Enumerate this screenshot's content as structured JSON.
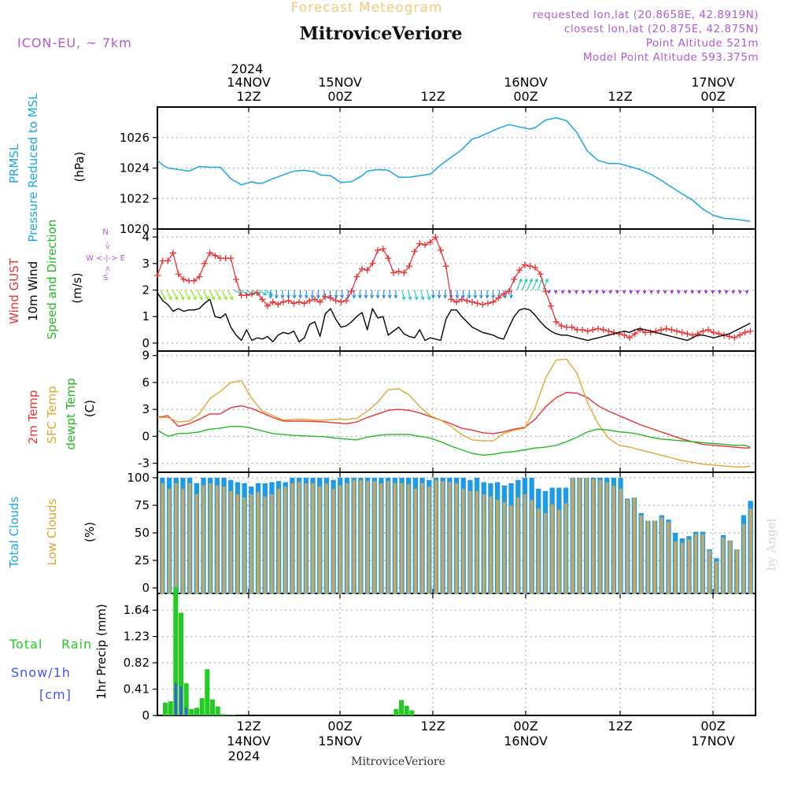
{
  "header": {
    "title": "Forecast Meteogram",
    "location": "MitroviceVeriore",
    "model": "ICON-EU, ~ 7km",
    "requested": "requested lon,lat (20.8658E, 42.8919N)",
    "closest": "closest lon,lat (20.875E, 42.875N)",
    "point_alt": "Point Altitude 521m",
    "model_alt": "Model Point Altitude 593.375m",
    "watermark": "by Angel",
    "footer_location": "MitroviceVeriore"
  },
  "time_axis": {
    "top_year": "2024",
    "top_dates": [
      "14NOV",
      "15NOV",
      "",
      "16NOV",
      "",
      "17NOV"
    ],
    "top_hours": [
      "12Z",
      "00Z",
      "12Z",
      "00Z",
      "12Z",
      "00Z"
    ],
    "bottom_hours": [
      "12Z",
      "00Z",
      "12Z",
      "00Z",
      "12Z",
      "00Z"
    ],
    "bottom_dates": [
      "14NOV",
      "15NOV",
      "",
      "16NOV",
      "",
      "17NOV"
    ],
    "bottom_year": "2024"
  },
  "panel_labels": {
    "p1": [
      "PRMSL",
      "Pressure Reduced to MSL",
      "(hPa)"
    ],
    "p2": [
      "Wind GUST",
      "10m Wind",
      "Speed and Direction",
      "(m/s)"
    ],
    "p2_compass": [
      "N",
      "W <-|-> E",
      "S"
    ],
    "p3": [
      "2m Temp",
      "SFC Temp",
      "dewpt Temp",
      "(C)"
    ],
    "p4": [
      "Total Clouds",
      "Low Clouds",
      "(%)"
    ],
    "p5": [
      "Total",
      "Rain",
      "Snow/1h",
      "[cm]",
      "1hr Precip (mm)"
    ]
  },
  "colors": {
    "pressure": "#1ba6e6",
    "gust": "#ee3333",
    "wind": "#000000",
    "t2m": "#ee3333",
    "tsfc": "#e0a830",
    "dewpt": "#22bb22",
    "total_clouds": "#1e9be8",
    "low_clouds": "#c8a860",
    "rain": "#22cc22",
    "snow": "#4455ee",
    "title": "#f5c97a",
    "info": "#b05ad8"
  },
  "chart_data": [
    {
      "type": "line",
      "title": "PRMSL Pressure Reduced to MSL",
      "ylabel": "(hPa)",
      "ylim": [
        1020,
        1028
      ],
      "yticks": [
        1020,
        1022,
        1024,
        1026
      ],
      "x_hours": [
        0,
        1,
        2,
        4,
        6,
        8,
        10,
        12,
        14,
        16,
        18,
        19,
        20,
        22,
        24,
        26,
        28,
        30,
        31,
        33,
        35,
        37,
        39,
        40,
        42,
        44,
        46,
        48,
        50,
        52,
        54,
        56,
        58,
        60,
        61,
        63,
        65,
        67,
        69,
        71,
        72,
        74,
        76,
        78,
        80,
        82,
        84,
        86,
        88,
        90,
        92,
        94,
        96,
        98,
        100,
        102,
        104,
        106,
        108,
        110,
        111,
        112,
        113
      ],
      "series": [
        {
          "name": "PRMSL",
          "values": [
            1024.5,
            1024.2,
            1024.0,
            1023.9,
            1023.8,
            1024.1,
            1024.05,
            1024.05,
            1023.3,
            1022.9,
            1023.1,
            1023.0,
            1023.0,
            1023.3,
            1023.55,
            1023.8,
            1023.85,
            1023.75,
            1023.55,
            1023.5,
            1023.05,
            1023.1,
            1023.5,
            1023.8,
            1023.9,
            1023.85,
            1023.4,
            1023.4,
            1023.5,
            1023.6,
            1024.2,
            1024.7,
            1025.2,
            1025.9,
            1026.0,
            1026.3,
            1026.6,
            1026.85,
            1026.7,
            1026.55,
            1026.65,
            1027.15,
            1027.3,
            1027.1,
            1026.3,
            1025.1,
            1024.5,
            1024.3,
            1024.3,
            1024.1,
            1023.9,
            1023.6,
            1023.2,
            1022.75,
            1022.3,
            1021.9,
            1021.3,
            1020.9,
            1020.7,
            1020.65,
            1020.6,
            1020.55,
            1020.5
          ]
        }
      ]
    },
    {
      "type": "line",
      "title": "Wind GUST / 10m Wind Speed and Direction",
      "ylabel": "(m/s)",
      "ylim": [
        -0.3,
        4.3
      ],
      "yticks": [
        0,
        1,
        2,
        3,
        4
      ],
      "gust_hours": [
        0,
        1,
        2,
        3,
        4,
        5,
        6,
        7,
        8,
        9,
        10,
        11,
        12,
        13,
        14,
        15,
        16,
        17,
        18,
        19,
        20,
        21,
        22,
        23,
        24,
        25,
        26,
        27,
        28,
        29,
        30,
        31,
        32,
        33,
        34,
        35,
        36,
        37,
        38,
        39,
        40,
        41,
        42,
        43,
        44,
        45,
        46,
        47,
        48,
        49,
        50,
        51,
        52,
        53,
        54,
        55,
        56,
        57,
        58,
        59,
        60,
        61,
        62,
        63,
        64,
        65,
        66,
        67,
        68,
        69,
        70,
        71,
        72,
        73,
        74,
        75,
        76,
        77,
        78,
        79,
        80,
        81,
        82,
        83,
        84,
        85,
        86,
        87,
        88,
        89,
        90,
        91,
        92,
        93,
        94,
        95,
        96,
        97,
        98,
        99,
        100,
        101,
        102,
        103,
        104,
        105,
        106,
        107,
        108,
        109,
        110,
        111,
        112,
        113
      ],
      "series": [
        {
          "name": "Wind GUST",
          "values": [
            2.55,
            3.1,
            3.1,
            3.4,
            2.6,
            2.4,
            2.35,
            2.35,
            2.5,
            3.0,
            3.4,
            3.3,
            3.2,
            3.2,
            3.2,
            2.4,
            1.8,
            1.8,
            1.85,
            1.9,
            1.65,
            1.4,
            1.55,
            1.45,
            1.55,
            1.6,
            1.5,
            1.55,
            1.5,
            1.6,
            1.65,
            1.55,
            1.75,
            1.7,
            1.6,
            1.55,
            1.6,
            1.95,
            2.5,
            2.8,
            2.75,
            3.0,
            3.5,
            3.55,
            3.2,
            2.65,
            2.7,
            2.65,
            2.9,
            3.45,
            3.75,
            3.7,
            3.8,
            4.0,
            3.5,
            2.9,
            1.65,
            1.55,
            1.65,
            1.6,
            1.55,
            1.5,
            1.45,
            1.5,
            1.55,
            1.7,
            1.85,
            1.95,
            2.4,
            2.75,
            2.95,
            2.9,
            2.85,
            2.6,
            1.95,
            1.4,
            0.8,
            0.65,
            0.6,
            0.6,
            0.5,
            0.5,
            0.45,
            0.5,
            0.55,
            0.5,
            0.45,
            0.4,
            0.35,
            0.3,
            0.2,
            0.35,
            0.5,
            0.4,
            0.4,
            0.45,
            0.5,
            0.55,
            0.5,
            0.45,
            0.4,
            0.35,
            0.3,
            0.35,
            0.45,
            0.5,
            0.4,
            0.35,
            0.3,
            0.25,
            0.2,
            0.3,
            0.4,
            0.45
          ]
        },
        {
          "name": "10m Wind",
          "values": [
            1.9,
            1.6,
            1.45,
            1.2,
            1.3,
            1.2,
            1.25,
            1.25,
            1.3,
            1.5,
            1.65,
            1.0,
            0.95,
            1.1,
            0.6,
            0.3,
            0.1,
            0.5,
            0.1,
            0.2,
            0.15,
            0.25,
            0.05,
            0.3,
            0.4,
            0.35,
            0.45,
            0.05,
            0.2,
            0.7,
            0.8,
            0.25,
            1.1,
            1.3,
            0.9,
            0.6,
            0.65,
            0.8,
            1.0,
            1.15,
            0.5,
            1.3,
            0.95,
            1.0,
            0.3,
            0.45,
            0.6,
            0.35,
            0.25,
            0.2,
            0.5,
            0.1,
            0.2,
            0.15,
            0.1,
            0.9,
            1.25,
            1.25,
            1.0,
            0.8,
            0.6,
            0.5,
            0.4,
            0.35,
            0.3,
            0.2,
            0.15,
            0.6,
            1.0,
            1.25,
            1.3,
            1.25,
            1.05,
            0.8,
            0.6,
            0.45,
            0.35,
            0.3,
            0.3,
            0.25,
            0.2,
            0.15,
            0.1,
            0.15,
            0.2,
            0.25,
            0.3,
            0.35,
            0.4,
            0.45,
            0.4,
            0.5,
            0.55,
            0.5,
            0.45,
            0.4,
            0.35,
            0.3,
            0.25,
            0.2,
            0.15,
            0.1,
            0.2,
            0.3,
            0.3,
            0.25,
            0.2,
            0.25,
            0.3,
            0.35,
            0.45,
            0.55,
            0.65,
            0.75
          ]
        }
      ],
      "arrows": [
        {
          "hours_from": 0,
          "hours_to": 14,
          "color": "#88ee22",
          "count": 12
        },
        {
          "hours_from": 14,
          "hours_to": 21,
          "color": "#22ccbb",
          "count": 6
        },
        {
          "hours_from": 21,
          "hours_to": 46,
          "color": "#1f8fe8",
          "count": 22
        },
        {
          "hours_from": 46,
          "hours_to": 52,
          "color": "#22ccbb",
          "count": 5
        },
        {
          "hours_from": 52,
          "hours_to": 68,
          "color": "#1f8fe8",
          "count": 14
        },
        {
          "hours_from": 68,
          "hours_to": 74,
          "color": "#22ccbb",
          "count": 6
        },
        {
          "hours_from": 74,
          "hours_to": 113,
          "color": "#9933cc",
          "count": 30
        }
      ]
    },
    {
      "type": "line",
      "title": "2m Temp / SFC Temp / dewpt Temp",
      "ylabel": "(C)",
      "ylim": [
        -4,
        9.5
      ],
      "yticks": [
        -3,
        0,
        3,
        6,
        9
      ],
      "x_hours": [
        0,
        2,
        4,
        6,
        8,
        10,
        12,
        14,
        16,
        18,
        20,
        22,
        24,
        26,
        28,
        30,
        32,
        34,
        36,
        38,
        40,
        42,
        44,
        46,
        48,
        50,
        52,
        54,
        56,
        58,
        60,
        62,
        64,
        66,
        68,
        70,
        72,
        74,
        76,
        78,
        80,
        82,
        84,
        86,
        88,
        90,
        92,
        94,
        96,
        98,
        100,
        102,
        104,
        106,
        108,
        110,
        112,
        113
      ],
      "series": [
        {
          "name": "2m Temp",
          "values": [
            2.1,
            2.3,
            1.1,
            1.4,
            1.9,
            2.5,
            2.5,
            3.2,
            3.4,
            3.1,
            2.6,
            2.1,
            1.7,
            1.7,
            1.7,
            1.65,
            1.6,
            1.5,
            1.4,
            1.6,
            2.1,
            2.5,
            2.9,
            3.0,
            2.9,
            2.6,
            2.2,
            1.8,
            1.4,
            0.9,
            0.7,
            0.4,
            0.3,
            0.5,
            0.8,
            1.0,
            1.9,
            3.3,
            4.3,
            4.9,
            4.8,
            4.3,
            3.4,
            2.8,
            2.3,
            1.8,
            1.3,
            0.9,
            0.5,
            0.1,
            -0.3,
            -0.6,
            -0.9,
            -1.0,
            -1.1,
            -1.2,
            -1.3,
            -1.3
          ]
        },
        {
          "name": "SFC Temp",
          "values": [
            2.1,
            2.1,
            1.6,
            1.7,
            2.5,
            4.2,
            5.0,
            6.0,
            6.2,
            4.2,
            2.8,
            2.3,
            1.8,
            1.9,
            1.9,
            1.8,
            1.8,
            1.9,
            1.9,
            2.0,
            2.8,
            3.8,
            5.2,
            5.3,
            4.6,
            3.3,
            2.3,
            1.8,
            1.1,
            0.2,
            -0.4,
            -0.5,
            -0.5,
            0.3,
            0.7,
            0.9,
            3.2,
            6.5,
            8.5,
            8.6,
            7.0,
            3.7,
            1.4,
            -0.2,
            -1.0,
            -1.2,
            -1.5,
            -1.8,
            -2.1,
            -2.4,
            -2.7,
            -2.9,
            -3.1,
            -3.2,
            -3.3,
            -3.4,
            -3.4,
            -3.3
          ]
        },
        {
          "name": "dewpt Temp",
          "values": [
            0.7,
            0.0,
            0.3,
            0.35,
            0.5,
            0.8,
            0.9,
            1.1,
            1.1,
            0.9,
            0.6,
            0.3,
            0.2,
            0.1,
            0.05,
            0.0,
            -0.05,
            -0.2,
            -0.3,
            -0.4,
            -0.1,
            0.1,
            0.2,
            0.2,
            0.2,
            0.0,
            -0.2,
            -0.6,
            -1.1,
            -1.5,
            -1.9,
            -2.1,
            -2.0,
            -1.8,
            -1.7,
            -1.5,
            -1.3,
            -1.2,
            -1.0,
            -0.6,
            -0.1,
            0.5,
            0.8,
            0.7,
            0.5,
            0.4,
            0.2,
            -0.1,
            -0.3,
            -0.4,
            -0.5,
            -0.6,
            -0.7,
            -0.8,
            -0.9,
            -1.0,
            -1.0,
            -1.2
          ]
        }
      ]
    },
    {
      "type": "bar",
      "title": "Total Clouds / Low Clouds",
      "ylabel": "(%)",
      "ylim": [
        -5,
        105
      ],
      "yticks": [
        0,
        25,
        50,
        75,
        100
      ],
      "series": [
        {
          "name": "Total Clouds",
          "values": [
            100,
            100,
            100,
            100,
            100,
            95,
            100,
            100,
            100,
            100,
            98,
            96,
            95,
            92,
            95,
            95,
            96,
            97,
            96,
            100,
            100,
            100,
            100,
            100,
            100,
            98,
            100,
            100,
            100,
            100,
            100,
            100,
            100,
            100,
            100,
            100,
            100,
            100,
            100,
            98,
            100,
            100,
            100,
            100,
            100,
            98,
            100,
            96,
            95,
            96,
            93,
            95,
            98,
            100,
            100,
            90,
            88,
            91,
            91,
            91,
            100,
            100,
            100,
            100,
            100,
            100,
            100,
            100,
            81,
            82,
            68,
            61,
            61,
            66,
            62,
            50,
            45,
            47,
            51,
            51,
            35,
            27,
            48,
            43,
            35,
            66,
            79
          ]
        },
        {
          "name": "Low Clouds",
          "values": [
            95,
            90,
            95,
            90,
            95,
            85,
            93,
            95,
            93,
            92,
            88,
            85,
            82,
            85,
            87,
            83,
            85,
            90,
            92,
            95,
            96,
            95,
            95,
            92,
            95,
            90,
            93,
            95,
            98,
            98,
            97,
            97,
            95,
            97,
            95,
            95,
            94,
            90,
            95,
            92,
            98,
            97,
            96,
            95,
            90,
            88,
            88,
            85,
            83,
            80,
            78,
            75,
            82,
            85,
            80,
            72,
            68,
            76,
            71,
            77,
            100,
            100,
            100,
            99,
            98,
            96,
            93,
            90,
            80,
            82,
            66,
            61,
            61,
            64,
            60,
            42,
            41,
            44,
            49,
            49,
            34,
            24,
            46,
            43,
            35,
            58,
            72
          ]
        }
      ]
    },
    {
      "type": "bar",
      "title": "1hr Precip",
      "ylabel": "1hr Precip (mm)",
      "ylim": [
        0,
        1.9
      ],
      "yticks": [
        0,
        0.41,
        0.82,
        1.23,
        1.64
      ],
      "x_hours": [
        1,
        2,
        3,
        4,
        5,
        6,
        7,
        8,
        9,
        10,
        11,
        12,
        13,
        14,
        45,
        46,
        47,
        48
      ],
      "series": [
        {
          "name": "Total Rain",
          "values": [
            0.2,
            0.22,
            2.0,
            1.6,
            0.5,
            0.1,
            0.12,
            0.27,
            0.72,
            0.25,
            0.14,
            0.02,
            0.01,
            0.01,
            0.1,
            0.24,
            0.15,
            0.08
          ]
        },
        {
          "name": "Snow/1h",
          "values": [
            0,
            0,
            0.5,
            0.45,
            0.12,
            0,
            0,
            0,
            0,
            0,
            0,
            0,
            0,
            0,
            0,
            0,
            0,
            0
          ]
        }
      ]
    }
  ]
}
